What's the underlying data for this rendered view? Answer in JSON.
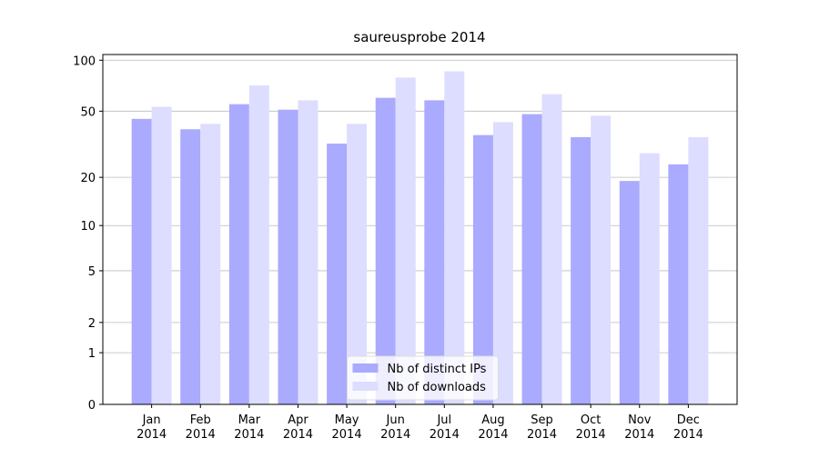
{
  "chart_data": {
    "type": "bar",
    "title": "saureusprobe 2014",
    "categories": [
      "Jan 2014",
      "Feb 2014",
      "Mar 2014",
      "Apr 2014",
      "May 2014",
      "Jun 2014",
      "Jul 2014",
      "Aug 2014",
      "Sep 2014",
      "Oct 2014",
      "Nov 2014",
      "Dec 2014"
    ],
    "series": [
      {
        "name": "Nb of distinct IPs",
        "color": "#aaaaff",
        "values": [
          45,
          39,
          55,
          51,
          32,
          60,
          58,
          36,
          48,
          35,
          19,
          24
        ]
      },
      {
        "name": "Nb of downloads",
        "color": "#ddddff",
        "values": [
          53,
          42,
          71,
          58,
          42,
          79,
          86,
          43,
          63,
          47,
          28,
          35
        ]
      }
    ],
    "yscale": "log1p",
    "ylim": [
      0,
      108
    ],
    "yticks": [
      0,
      1,
      2,
      5,
      10,
      20,
      50,
      100
    ],
    "grid": true,
    "legend": "lower center"
  }
}
